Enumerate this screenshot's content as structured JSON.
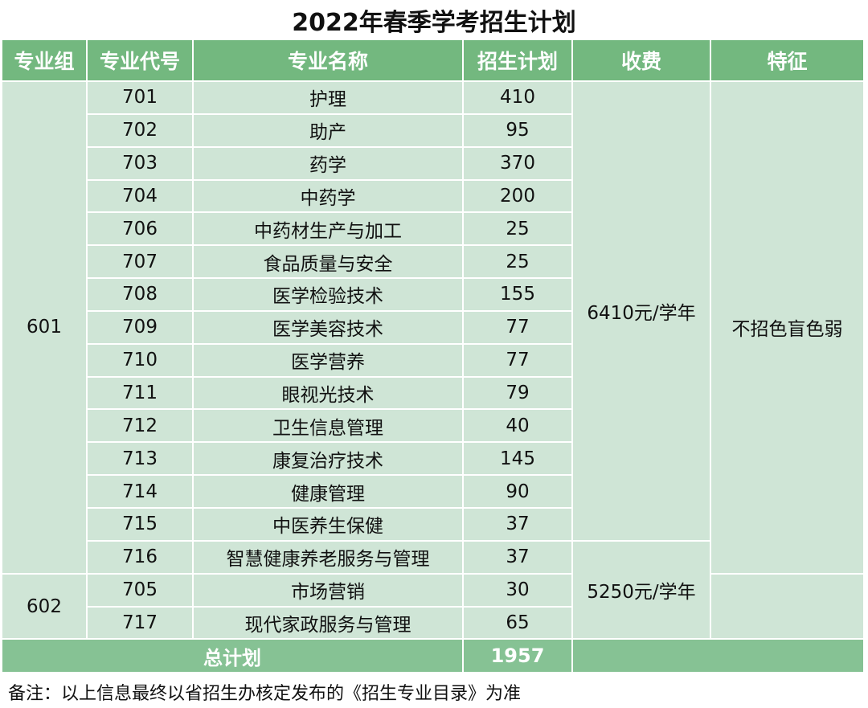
{
  "title": "2022年春季学考招生计划",
  "headers": [
    "专业组",
    "专业代号",
    "专业名称",
    "招生计划",
    "收费",
    "特征"
  ],
  "groups": [
    "601",
    "602"
  ],
  "rows": [
    {
      "code": "701",
      "name": "护理",
      "plan": "410"
    },
    {
      "code": "702",
      "name": "助产",
      "plan": "95"
    },
    {
      "code": "703",
      "name": "药学",
      "plan": "370"
    },
    {
      "code": "704",
      "name": "中药学",
      "plan": "200"
    },
    {
      "code": "706",
      "name": "中药材生产与加工",
      "plan": "25"
    },
    {
      "code": "707",
      "name": "食品质量与安全",
      "plan": "25"
    },
    {
      "code": "708",
      "name": "医学检验技术",
      "plan": "155"
    },
    {
      "code": "709",
      "name": "医学美容技术",
      "plan": "77"
    },
    {
      "code": "710",
      "name": "医学营养",
      "plan": "77"
    },
    {
      "code": "711",
      "name": "眼视光技术",
      "plan": "79"
    },
    {
      "code": "712",
      "name": "卫生信息管理",
      "plan": "40"
    },
    {
      "code": "713",
      "name": "康复治疗技术",
      "plan": "145"
    },
    {
      "code": "714",
      "name": "健康管理",
      "plan": "90"
    },
    {
      "code": "715",
      "name": "中医养生保健",
      "plan": "37"
    },
    {
      "code": "716",
      "name": "智慧健康养老服务与管理",
      "plan": "37"
    },
    {
      "code": "705",
      "name": "市场营销",
      "plan": "30"
    },
    {
      "code": "717",
      "name": "现代家政服务与管理",
      "plan": "65"
    }
  ],
  "fees": [
    "6410元/学年",
    "5250元/学年"
  ],
  "feature": "不招色盲色弱",
  "total_label": "总计划",
  "total_value": "1957",
  "note": "备注：以上信息最终以省招生办核定发布的《招生专业目录》为准"
}
